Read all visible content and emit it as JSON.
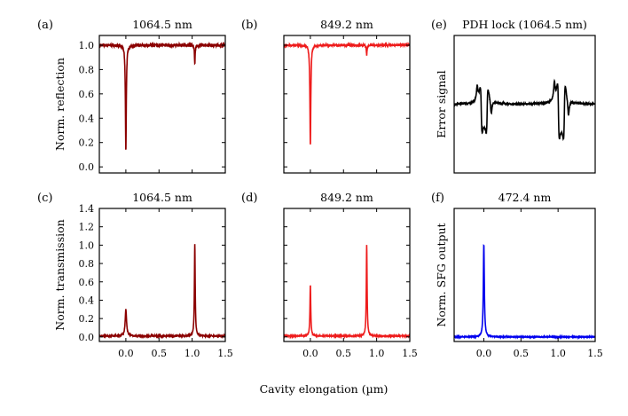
{
  "chart_data": [
    {
      "panel": "(a)",
      "type": "line",
      "title": "1064.5 nm",
      "ylabel": "Norm. reflection",
      "xlim": [
        -0.4,
        1.5
      ],
      "ylim": [
        -0.05,
        1.08
      ],
      "xticks": [
        "0.0",
        "0.5",
        "1.0",
        "1.5"
      ],
      "xtick_values": [
        0,
        0.5,
        1,
        1.5
      ],
      "show_xticklabels": false,
      "yticks": [
        "0.0",
        "0.2",
        "0.4",
        "0.6",
        "0.8",
        "1.0"
      ],
      "ytick_values": [
        0,
        0.2,
        0.4,
        0.6,
        0.8,
        1.0
      ],
      "color": "#8b0000",
      "series": [
        {
          "baseline": 1.0,
          "noise": 0.012,
          "features": [
            {
              "kind": "dip",
              "x": 0.0,
              "value": 0.14,
              "width": 0.008
            },
            {
              "kind": "dip",
              "x": 1.04,
              "value": 0.85,
              "width": 0.006
            }
          ]
        }
      ]
    },
    {
      "panel": "(b)",
      "type": "line",
      "title": "849.2 nm",
      "ylabel": "",
      "xlim": [
        -0.4,
        1.5
      ],
      "ylim": [
        -0.05,
        1.08
      ],
      "xticks": [
        "0.0",
        "0.5",
        "1.0",
        "1.5"
      ],
      "xtick_values": [
        0,
        0.5,
        1,
        1.5
      ],
      "show_xticklabels": false,
      "yticks": [
        "0.0",
        "0.2",
        "0.4",
        "0.6",
        "0.8",
        "1.0"
      ],
      "ytick_values": [
        0,
        0.2,
        0.4,
        0.6,
        0.8,
        1.0
      ],
      "show_yticklabels": false,
      "color": "#ee1c1c",
      "series": [
        {
          "baseline": 1.0,
          "noise": 0.008,
          "features": [
            {
              "kind": "dip",
              "x": 0.0,
              "value": 0.18,
              "width": 0.008
            },
            {
              "kind": "dip",
              "x": 0.85,
              "value": 0.92,
              "width": 0.006
            }
          ]
        }
      ]
    },
    {
      "panel": "(e)",
      "type": "line",
      "title": "PDH lock (1064.5 nm)",
      "ylabel": "Error signal",
      "xlim": [
        -0.4,
        1.5
      ],
      "ylim": [
        -1.0,
        1.0
      ],
      "xticks": [],
      "yticks": [],
      "color": "#000000",
      "series": [
        {
          "baseline": 0.0,
          "noise": 0.012,
          "features": [
            {
              "kind": "error",
              "x": 0.0,
              "value": 0.8
            },
            {
              "kind": "error",
              "x": 1.04,
              "value": 0.98
            }
          ]
        }
      ]
    },
    {
      "panel": "(c)",
      "type": "line",
      "title": "1064.5 nm",
      "ylabel": "Norm. transmission",
      "xlim": [
        -0.4,
        1.5
      ],
      "ylim": [
        -0.05,
        1.4
      ],
      "xticks": [
        "0.0",
        "0.5",
        "1.0",
        "1.5"
      ],
      "xtick_values": [
        0,
        0.5,
        1,
        1.5
      ],
      "show_xticklabels": true,
      "yticks": [
        "0.0",
        "0.2",
        "0.4",
        "0.6",
        "0.8",
        "1.0",
        "1.2",
        "1.4"
      ],
      "ytick_values": [
        0,
        0.2,
        0.4,
        0.6,
        0.8,
        1.0,
        1.2,
        1.4
      ],
      "color": "#8b0000",
      "series": [
        {
          "baseline": 0.01,
          "noise": 0.006,
          "features": [
            {
              "kind": "peak",
              "x": 0.0,
              "value": 0.29,
              "width": 0.012
            },
            {
              "kind": "peak",
              "x": 1.04,
              "value": 1.0,
              "width": 0.007
            }
          ]
        }
      ]
    },
    {
      "panel": "(d)",
      "type": "line",
      "title": "849.2 nm",
      "ylabel": "",
      "xlim": [
        -0.4,
        1.5
      ],
      "ylim": [
        -0.05,
        1.4
      ],
      "xticks": [
        "0.0",
        "0.5",
        "1.0",
        "1.5"
      ],
      "xtick_values": [
        0,
        0.5,
        1,
        1.5
      ],
      "show_xticklabels": true,
      "yticks": [
        "0.0",
        "0.2",
        "0.4",
        "0.6",
        "0.8",
        "1.0",
        "1.2",
        "1.4"
      ],
      "ytick_values": [
        0,
        0.2,
        0.4,
        0.6,
        0.8,
        1.0,
        1.2,
        1.4
      ],
      "show_yticklabels": false,
      "color": "#ee1c1c",
      "series": [
        {
          "baseline": 0.01,
          "noise": 0.004,
          "features": [
            {
              "kind": "peak",
              "x": 0.0,
              "value": 0.56,
              "width": 0.007
            },
            {
              "kind": "peak",
              "x": 0.85,
              "value": 0.99,
              "width": 0.007
            }
          ]
        }
      ]
    },
    {
      "panel": "(f)",
      "type": "line",
      "title": "472.4 nm",
      "ylabel": "Norm. SFG output",
      "xlim": [
        -0.4,
        1.5
      ],
      "ylim": [
        -0.05,
        1.4
      ],
      "xticks": [
        "0.0",
        "0.5",
        "1.0",
        "1.5"
      ],
      "xtick_values": [
        0,
        0.5,
        1,
        1.5
      ],
      "show_xticklabels": true,
      "yticks": [],
      "color": "#0000ee",
      "series": [
        {
          "baseline": 0.0,
          "noise": 0.004,
          "features": [
            {
              "kind": "peak",
              "x": 0.0,
              "value": 1.0,
              "width": 0.008
            }
          ]
        }
      ]
    }
  ],
  "shared_xlabel": "Cavity elongation (µm)"
}
